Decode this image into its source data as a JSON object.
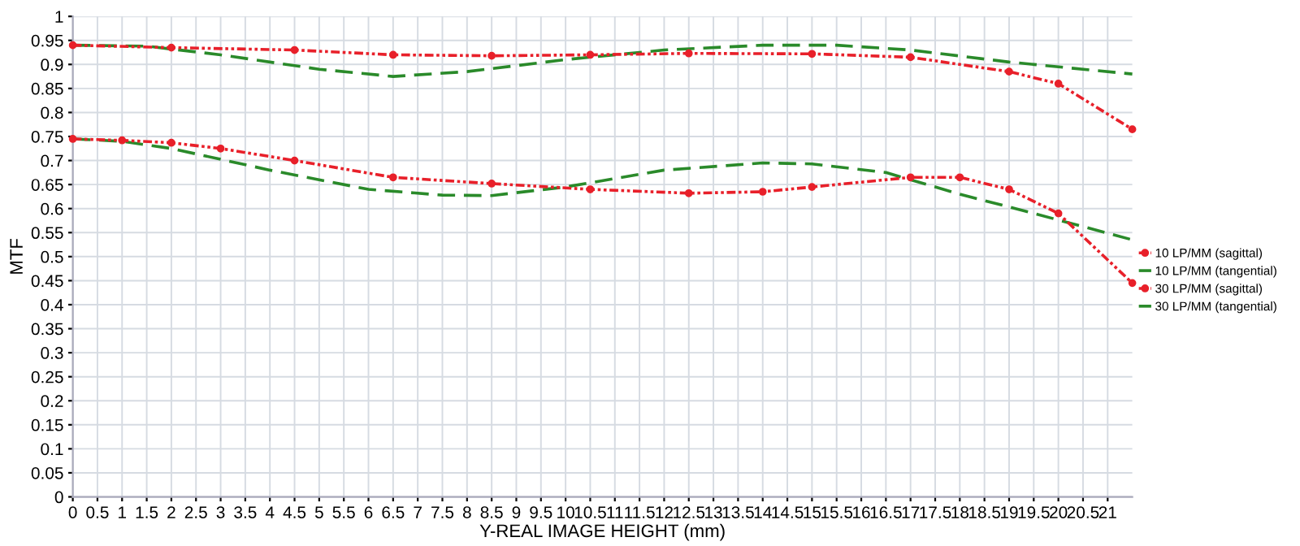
{
  "chart_data": {
    "type": "line",
    "xlabel": "Y-REAL IMAGE HEIGHT (mm)",
    "ylabel": "MTF",
    "xlim": [
      0,
      21.5
    ],
    "xticks": [
      0,
      0.5,
      1,
      1.5,
      2,
      2.5,
      3,
      3.5,
      4,
      4.5,
      5,
      5.5,
      6,
      6.5,
      7,
      7.5,
      8,
      8.5,
      9,
      9.5,
      10,
      10.5,
      11,
      11.5,
      12,
      12.5,
      13,
      13.5,
      14,
      14.5,
      15,
      15.5,
      16,
      16.5,
      17,
      17.5,
      18,
      18.5,
      19,
      19.5,
      20,
      20.5,
      21
    ],
    "ylim": [
      0,
      1
    ],
    "yticks": [
      0,
      0.05,
      0.1,
      0.15,
      0.2,
      0.25,
      0.3,
      0.35,
      0.4,
      0.45,
      0.5,
      0.55,
      0.6,
      0.65,
      0.7,
      0.75,
      0.8,
      0.85,
      0.9,
      0.95,
      1
    ],
    "grid": true,
    "legend": "right",
    "series": [
      {
        "name": "10 LP/MM (sagittal)",
        "color": "#e8202a",
        "line_style": "dotted",
        "marker": "circle",
        "x": [
          0,
          2,
          4.5,
          6.5,
          8.5,
          10.5,
          12.5,
          15,
          17,
          19,
          20,
          21.5
        ],
        "values": [
          0.94,
          0.935,
          0.93,
          0.92,
          0.918,
          0.92,
          0.923,
          0.922,
          0.915,
          0.885,
          0.86,
          0.765
        ]
      },
      {
        "name": "10 LP/MM (tangential)",
        "color": "#2a8a2a",
        "line_style": "dashed",
        "marker": "none",
        "x": [
          0,
          1.5,
          3,
          5,
          6.5,
          8,
          10,
          12,
          14,
          15.5,
          17,
          19,
          21.5
        ],
        "values": [
          0.94,
          0.938,
          0.92,
          0.89,
          0.875,
          0.885,
          0.91,
          0.93,
          0.94,
          0.94,
          0.93,
          0.905,
          0.88
        ]
      },
      {
        "name": "30 LP/MM (sagittal)",
        "color": "#e8202a",
        "line_style": "dotted",
        "marker": "circle",
        "x": [
          0,
          1,
          2,
          3,
          4.5,
          6.5,
          8.5,
          10.5,
          12.5,
          14,
          15,
          17,
          18,
          19,
          20,
          21.5
        ],
        "values": [
          0.745,
          0.742,
          0.737,
          0.725,
          0.7,
          0.665,
          0.652,
          0.64,
          0.632,
          0.635,
          0.645,
          0.665,
          0.665,
          0.64,
          0.59,
          0.445
        ]
      },
      {
        "name": "30 LP/MM (tangential)",
        "color": "#2a8a2a",
        "line_style": "dashed",
        "marker": "none",
        "x": [
          0,
          1,
          2,
          4,
          6,
          7.5,
          8.5,
          10,
          12,
          14,
          15,
          16.5,
          18,
          19.5,
          21.5
        ],
        "values": [
          0.745,
          0.74,
          0.725,
          0.68,
          0.64,
          0.628,
          0.627,
          0.645,
          0.68,
          0.695,
          0.693,
          0.675,
          0.63,
          0.59,
          0.535
        ]
      }
    ]
  }
}
